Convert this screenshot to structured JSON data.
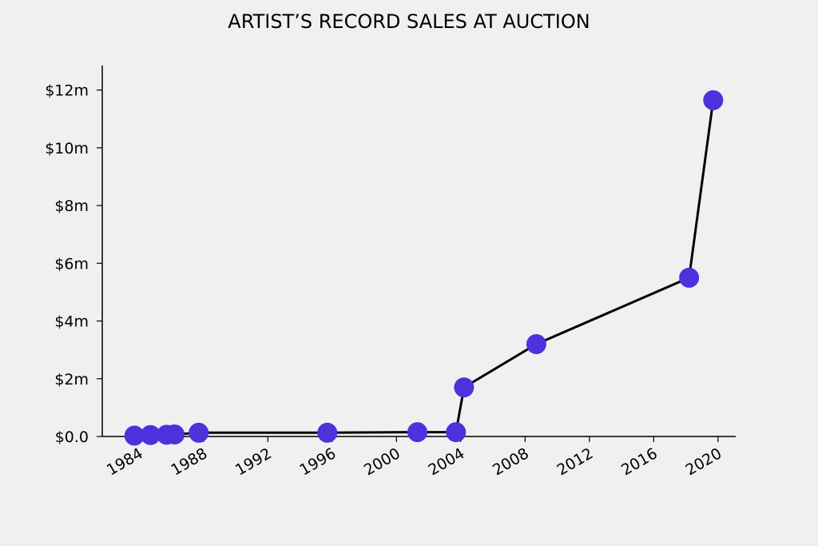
{
  "chart_data": {
    "type": "line",
    "title": "ARTIST’S RECORD SALES AT AUCTION",
    "xlabel": "",
    "ylabel": "",
    "x_ticks": [
      1984,
      1988,
      1992,
      1996,
      2000,
      2004,
      2008,
      2012,
      2016,
      2020
    ],
    "y_ticks": [
      {
        "value": 0,
        "label": "$0.0"
      },
      {
        "value": 2,
        "label": "$2m"
      },
      {
        "value": 4,
        "label": "$4m"
      },
      {
        "value": 6,
        "label": "$6m"
      },
      {
        "value": 8,
        "label": "$8m"
      },
      {
        "value": 10,
        "label": "$10m"
      },
      {
        "value": 12,
        "label": "$12m"
      }
    ],
    "xlim": [
      1981.7,
      2021.1
    ],
    "ylim": [
      0,
      12.85
    ],
    "grid": false,
    "series": [
      {
        "color": "#4b32dd",
        "points": [
          {
            "x": 1983.7,
            "y": 0.03
          },
          {
            "x": 1984.7,
            "y": 0.05
          },
          {
            "x": 1985.7,
            "y": 0.06
          },
          {
            "x": 1986.2,
            "y": 0.07
          },
          {
            "x": 1987.7,
            "y": 0.13
          },
          {
            "x": 1995.7,
            "y": 0.13
          },
          {
            "x": 2001.3,
            "y": 0.15
          },
          {
            "x": 2003.7,
            "y": 0.15
          },
          {
            "x": 2004.2,
            "y": 1.7
          },
          {
            "x": 2008.7,
            "y": 3.2
          },
          {
            "x": 2018.2,
            "y": 5.5
          },
          {
            "x": 2019.7,
            "y": 11.65
          }
        ]
      }
    ]
  }
}
